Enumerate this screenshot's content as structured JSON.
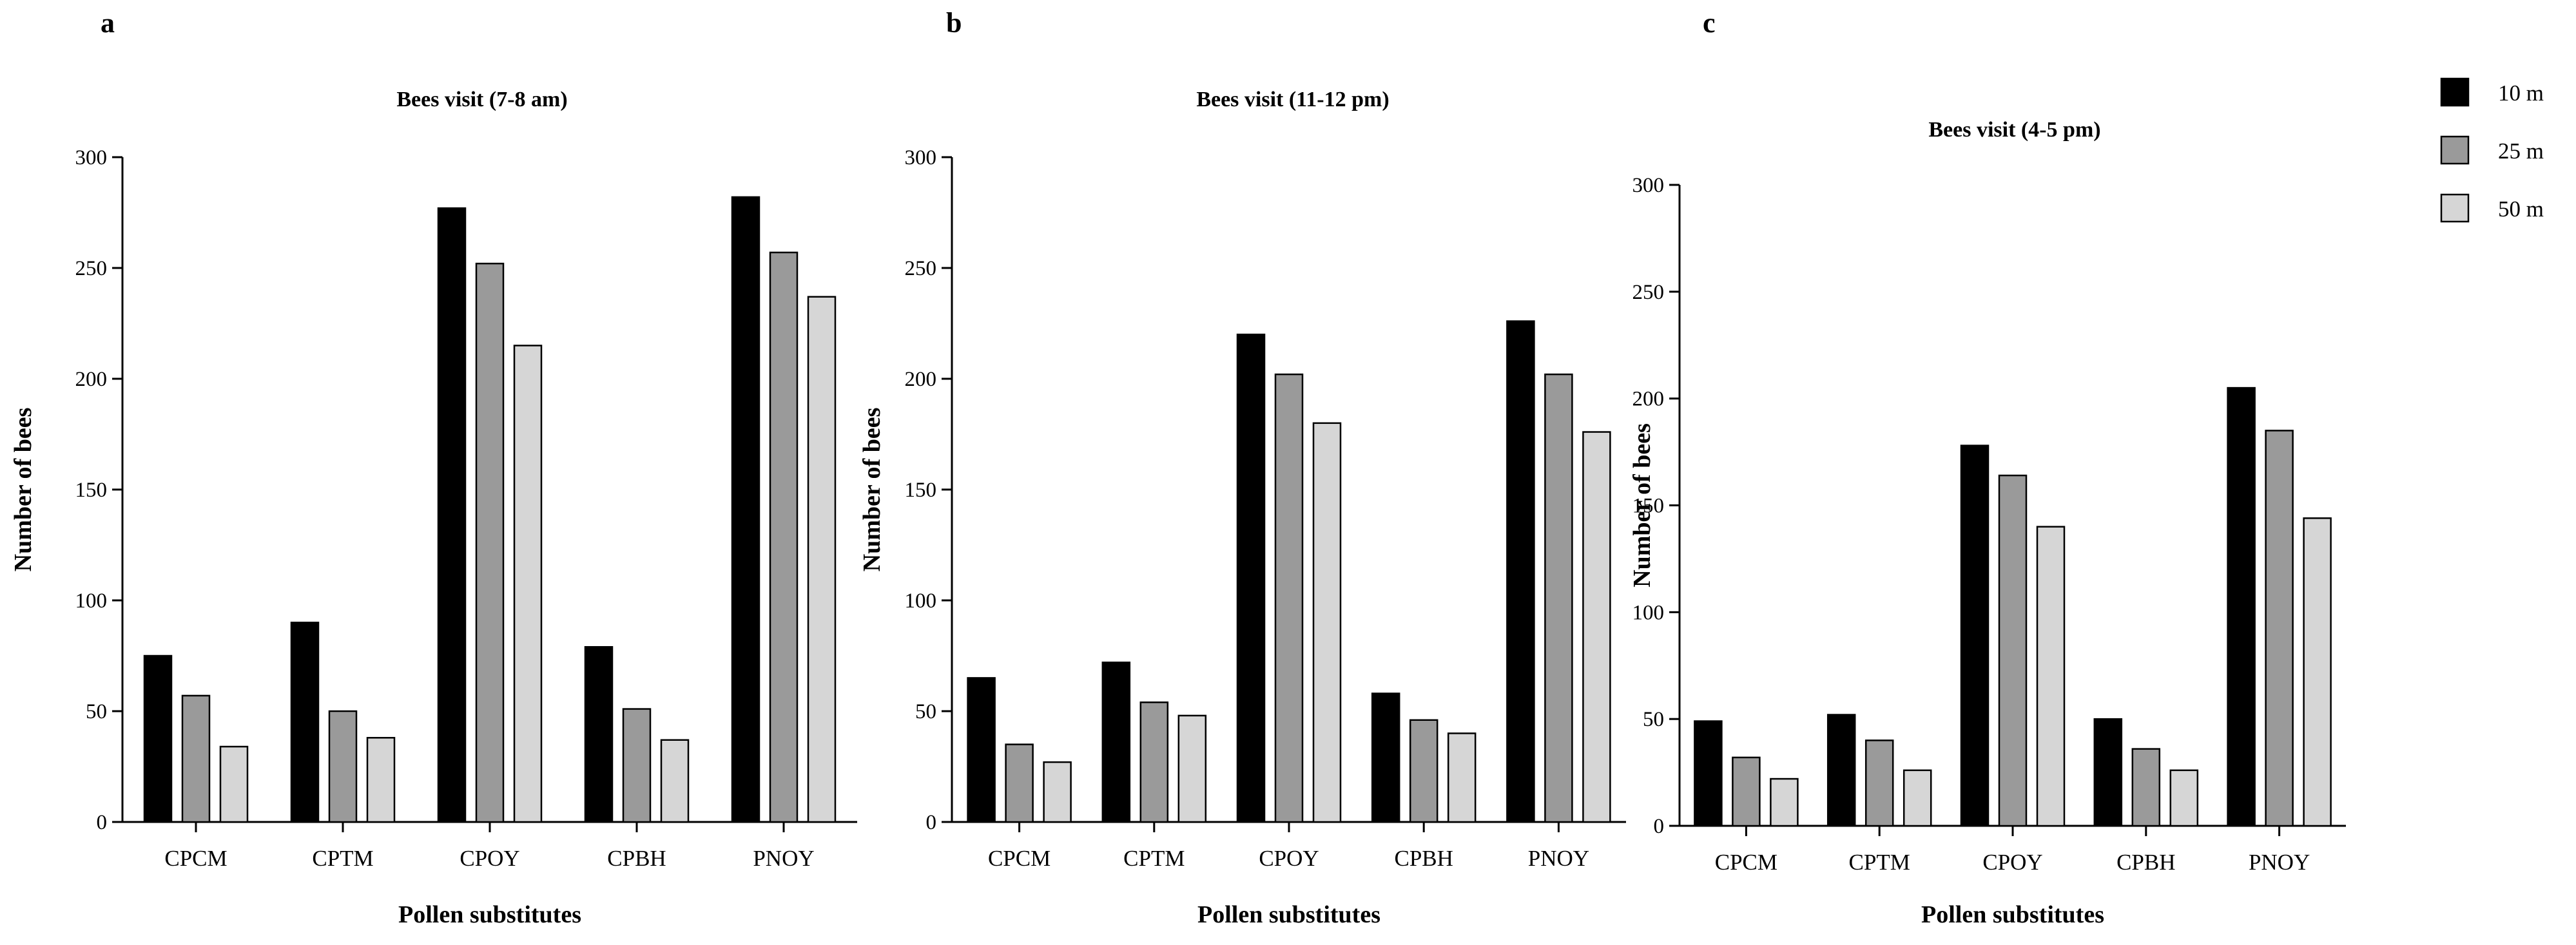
{
  "chart_data": [
    {
      "panel": "a",
      "type": "bar",
      "title": "Bees visit (7-8 am)",
      "xlabel": "Pollen substitutes",
      "ylabel": "Number of bees",
      "ylim": [
        0,
        300
      ],
      "yticks": [
        0,
        50,
        100,
        150,
        200,
        250,
        300
      ],
      "categories": [
        "CPCM",
        "CPTM",
        "CPOY",
        "CPBH",
        "PNOY"
      ],
      "series": [
        {
          "name": "10 m",
          "values": [
            75,
            90,
            277,
            79,
            282
          ]
        },
        {
          "name": "25 m",
          "values": [
            57,
            50,
            252,
            51,
            257
          ]
        },
        {
          "name": "50 m",
          "values": [
            34,
            38,
            215,
            37,
            237
          ]
        }
      ]
    },
    {
      "panel": "b",
      "type": "bar",
      "title": "Bees visit (11-12 pm)",
      "xlabel": "Pollen substitutes",
      "ylabel": "Number of bees",
      "ylim": [
        0,
        300
      ],
      "yticks": [
        0,
        50,
        100,
        150,
        200,
        250,
        300
      ],
      "categories": [
        "CPCM",
        "CPTM",
        "CPOY",
        "CPBH",
        "PNOY"
      ],
      "series": [
        {
          "name": "10 m",
          "values": [
            65,
            72,
            220,
            58,
            226
          ]
        },
        {
          "name": "25 m",
          "values": [
            35,
            54,
            202,
            46,
            202
          ]
        },
        {
          "name": "50 m",
          "values": [
            27,
            48,
            180,
            40,
            176
          ]
        }
      ]
    },
    {
      "panel": "c",
      "type": "bar",
      "title": "Bees visit (4-5 pm)",
      "xlabel": "Pollen substitutes",
      "ylabel": "Number of bees",
      "ylim": [
        0,
        300
      ],
      "yticks": [
        0,
        50,
        100,
        150,
        200,
        250,
        300
      ],
      "categories": [
        "CPCM",
        "CPTM",
        "CPOY",
        "CPBH",
        "PNOY"
      ],
      "series": [
        {
          "name": "10 m",
          "values": [
            49,
            52,
            178,
            50,
            205
          ]
        },
        {
          "name": "25 m",
          "values": [
            32,
            40,
            164,
            36,
            185
          ]
        },
        {
          "name": "50 m",
          "values": [
            22,
            26,
            140,
            26,
            144
          ]
        }
      ]
    }
  ],
  "legend": [
    {
      "label": "10 m",
      "color": "#000000"
    },
    {
      "label": "25 m",
      "color": "#9a9a9a"
    },
    {
      "label": "50 m",
      "color": "#d6d6d6"
    }
  ]
}
